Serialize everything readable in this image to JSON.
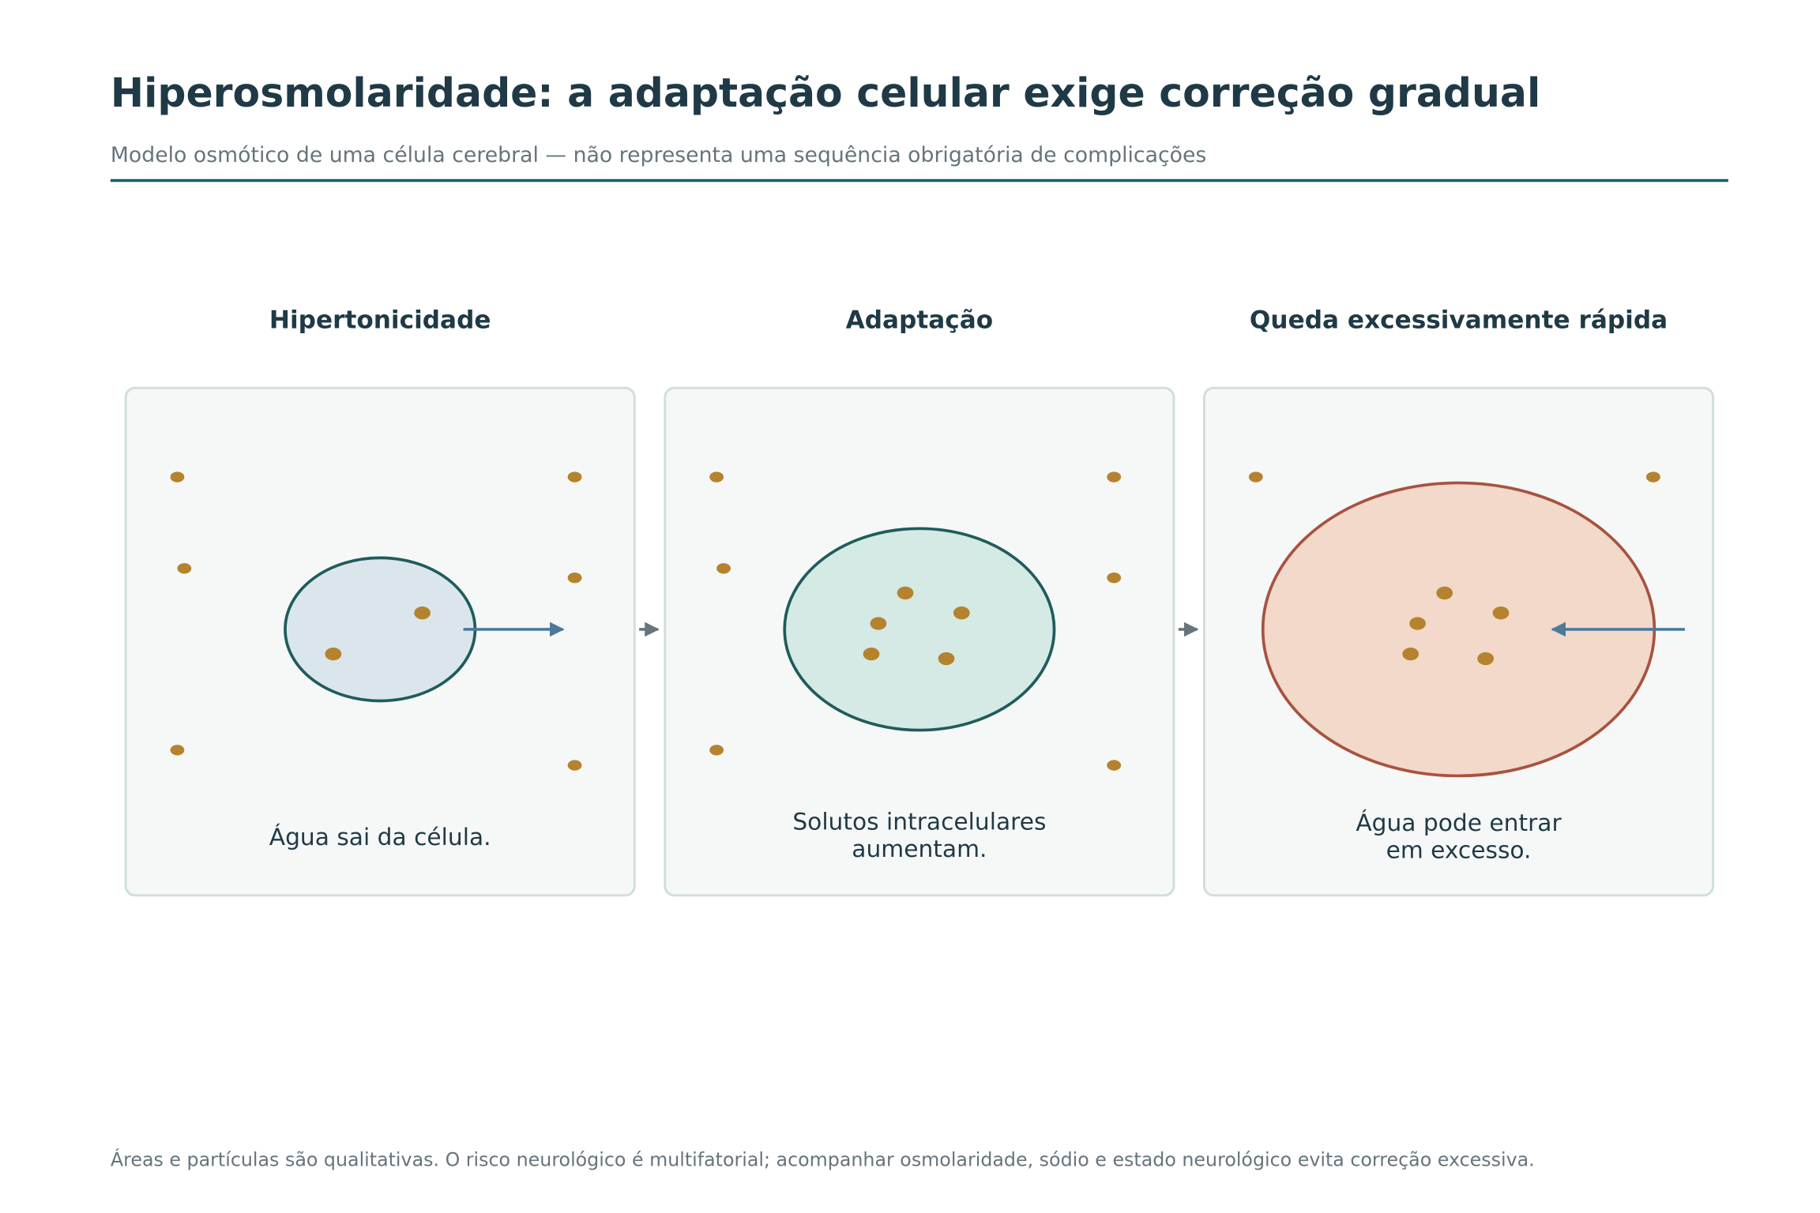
{
  "header": {
    "title": "Hiperosmolaridade: a adaptação celular exige correção gradual",
    "subtitle": "Modelo osmótico de uma célula cerebral — não representa uma sequência obrigatória de complicações"
  },
  "panels": [
    {
      "title": "Hipertonicidade",
      "caption": [
        "Água sai da célula."
      ]
    },
    {
      "title": "Adaptação",
      "caption": [
        "Solutos intracelulares",
        "aumentam."
      ]
    },
    {
      "title": "Queda excessivamente rápida",
      "caption": [
        "Água pode entrar",
        "em excesso."
      ]
    }
  ],
  "footer": {
    "note": "Áreas e partículas são qualitativas. O risco neurológico é multifatorial; acompanhar osmolaridade, sódio e estado neurológico evita correção excessiva."
  }
}
